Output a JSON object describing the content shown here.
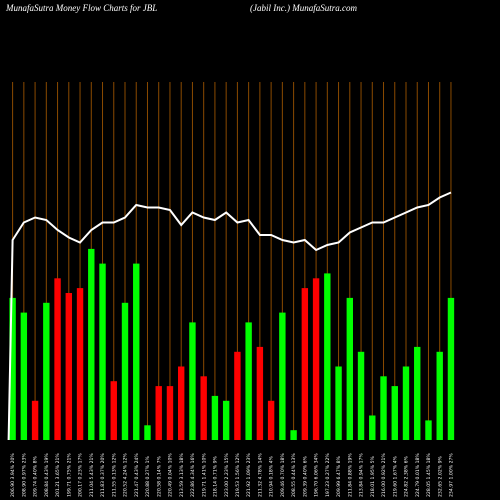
{
  "header": {
    "left": "MunafaSutra  Money Flow  Charts for JBL",
    "right": "(Jabil Inc.) MunafaSutra.com"
  },
  "colors": {
    "background": "#000000",
    "up": "#00ff00",
    "down": "#ff0000",
    "grid": "#8a4a00",
    "line": "#ffffff"
  },
  "chart_data": {
    "type": "bar",
    "grid": true,
    "categories": [
      "206.90 3.94% 20%",
      "208.90 0.97% 23%",
      "209.74 0.40% 8%",
      "208.84 0.43% 19%",
      "201.21 3.65% 21%",
      "199.71 0.75% 21%",
      "200.17 0.23% 17%",
      "211.04 5.43% 21%",
      "211.83 0.37% 20%",
      "211.55 0.13% 12%",
      "220.52 4.24% 12%",
      "221.47 0.43% 24%",
      "220.88 0.27% 1%",
      "220.58 0.14% 7%",
      "220.49 0.04% 10%",
      "213.59 3.13% 18%",
      "222.86 4.34% 16%",
      "219.71 1.41% 10%",
      "218.14 0.71% 9%",
      "223.00 2.23% 15%",
      "219.53 1.56% 12%",
      "221.92 1.09% 23%",
      "211.32 4.78% 14%",
      "210.94 0.18% 4%",
      "209.46 0.70% 18%",
      "208.55 0.44% 13%",
      "209.39 0.40% 6%",
      "196.70 6.06% 34%",
      "197.23 0.27% 22%",
      "209.99 6.47% 8%",
      "211.84 0.88% 19%",
      "213.84 0.94% 17%",
      "218.01 1.95% 5%",
      "216.00 0.92% 21%",
      "219.60 1.67% 4%",
      "224.82 2.38% 6%",
      "224.79 0.01% 18%",
      "228.05 1.45% 18%",
      "232.65 2.02% 9%",
      "234.97 1.00% 27%"
    ],
    "values": [
      29,
      26,
      8,
      28,
      33,
      30,
      31,
      39,
      36,
      12,
      28,
      36,
      3,
      11,
      11,
      15,
      24,
      13,
      9,
      8,
      18,
      24,
      19,
      8,
      26,
      2,
      31,
      33,
      34,
      15,
      29,
      18,
      5,
      13,
      11,
      15,
      19,
      4,
      18,
      29
    ],
    "directions": [
      "up",
      "up",
      "down",
      "up",
      "down",
      "down",
      "down",
      "up",
      "up",
      "down",
      "up",
      "up",
      "up",
      "down",
      "down",
      "down",
      "up",
      "down",
      "up",
      "up",
      "down",
      "up",
      "down",
      "down",
      "up",
      "up",
      "down",
      "down",
      "up",
      "up",
      "up",
      "up",
      "up",
      "up",
      "up",
      "up",
      "up",
      "up",
      "up",
      "up"
    ],
    "price_line": [
      35.6,
      36.3,
      36.5,
      36.4,
      36.0,
      35.7,
      35.5,
      36.0,
      36.3,
      36.3,
      36.5,
      37.0,
      36.9,
      36.9,
      36.8,
      36.2,
      36.7,
      36.5,
      36.4,
      36.7,
      36.3,
      36.4,
      35.8,
      35.8,
      35.6,
      35.5,
      35.6,
      35.2,
      35.4,
      35.5,
      35.9,
      36.1,
      36.3,
      36.3,
      36.5,
      36.7,
      36.9,
      37.0,
      37.3,
      37.5
    ]
  }
}
